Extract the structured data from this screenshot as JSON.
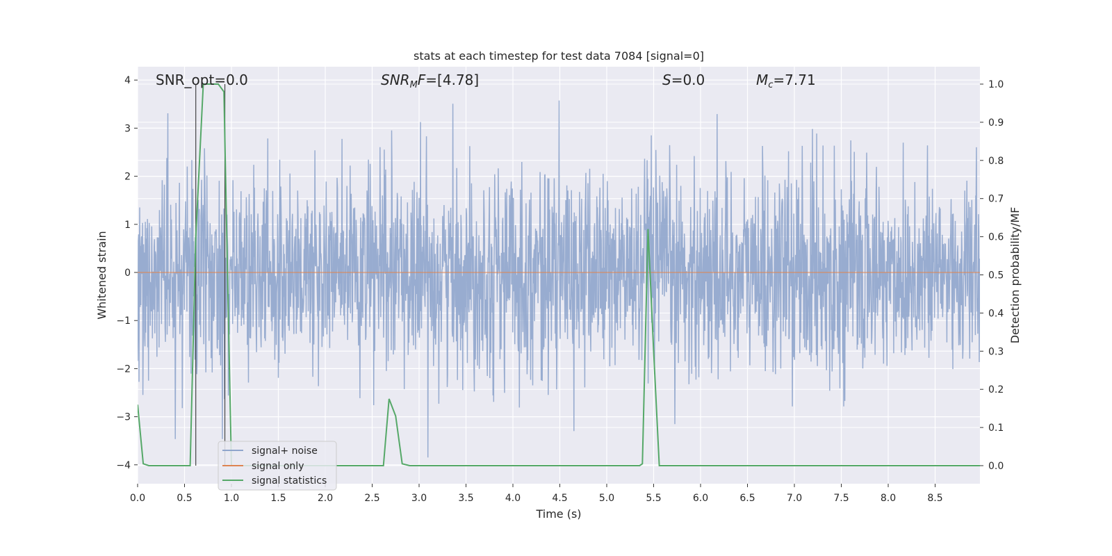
{
  "chart_data": {
    "type": "line",
    "title": "stats at each timestep for test data 7084 [signal=0]",
    "xlabel": "Time (s)",
    "ylabel": "Whitened strain",
    "y2label": "Detection probability/MF",
    "xlim": [
      0.0,
      9.0
    ],
    "ylim": [
      -4.4,
      4.3
    ],
    "y2lim": [
      -0.045,
      1.045
    ],
    "xticks": [
      "0.0",
      "0.5",
      "1.0",
      "1.5",
      "2.0",
      "2.5",
      "3.0",
      "3.5",
      "4.0",
      "4.5",
      "5.0",
      "5.5",
      "6.0",
      "6.5",
      "7.0",
      "7.5",
      "8.0",
      "8.5"
    ],
    "yticks": [
      "4",
      "3",
      "2",
      "1",
      "0",
      "−1",
      "−2",
      "−3",
      "−4"
    ],
    "y2ticks": [
      "1.0",
      "0.9",
      "0.8",
      "0.7",
      "0.6",
      "0.5",
      "0.4",
      "0.3",
      "0.2",
      "0.1",
      "0.0"
    ],
    "grid": true,
    "legend_position": "lower-left",
    "annotations": {
      "snr_opt": "SNR_opt=0.0",
      "snr_mf": "=[4.78]",
      "s_stat": "=0.0",
      "mc": "=7.71"
    },
    "series": [
      {
        "name": "signal+ noise",
        "color": "#8fa5cc",
        "description": "whitened strain noise, ~unit variance, amplitude within about ±4 across 0–9 s"
      },
      {
        "name": "signal only",
        "color": "#dd8452",
        "x": [
          0.0,
          9.0
        ],
        "y": [
          0.0,
          0.0
        ]
      },
      {
        "name": "signal statistics",
        "color": "#55a868",
        "axis": "right",
        "x": [
          0.0,
          0.06,
          0.12,
          0.3,
          0.5,
          0.56,
          0.62,
          0.7,
          0.78,
          0.86,
          0.92,
          0.95,
          1.0,
          1.5,
          2.0,
          2.5,
          2.62,
          2.68,
          2.75,
          2.82,
          2.9,
          3.5,
          4.0,
          4.5,
          5.0,
          5.35,
          5.38,
          5.44,
          5.5,
          5.56,
          5.62,
          6.0,
          7.0,
          8.0,
          9.0
        ],
        "y": [
          0.16,
          0.005,
          0.0,
          0.0,
          0.0,
          0.0,
          0.6,
          1.0,
          1.0,
          1.0,
          0.98,
          0.6,
          0.0,
          0.0,
          0.0,
          0.0,
          0.0,
          0.175,
          0.13,
          0.005,
          0.0,
          0.0,
          0.0,
          0.0,
          0.0,
          0.0,
          0.005,
          0.62,
          0.3,
          0.0,
          0.0,
          0.0,
          0.0,
          0.0,
          0.0
        ]
      }
    ],
    "vertical_markers": [
      0.62,
      0.93
    ]
  }
}
